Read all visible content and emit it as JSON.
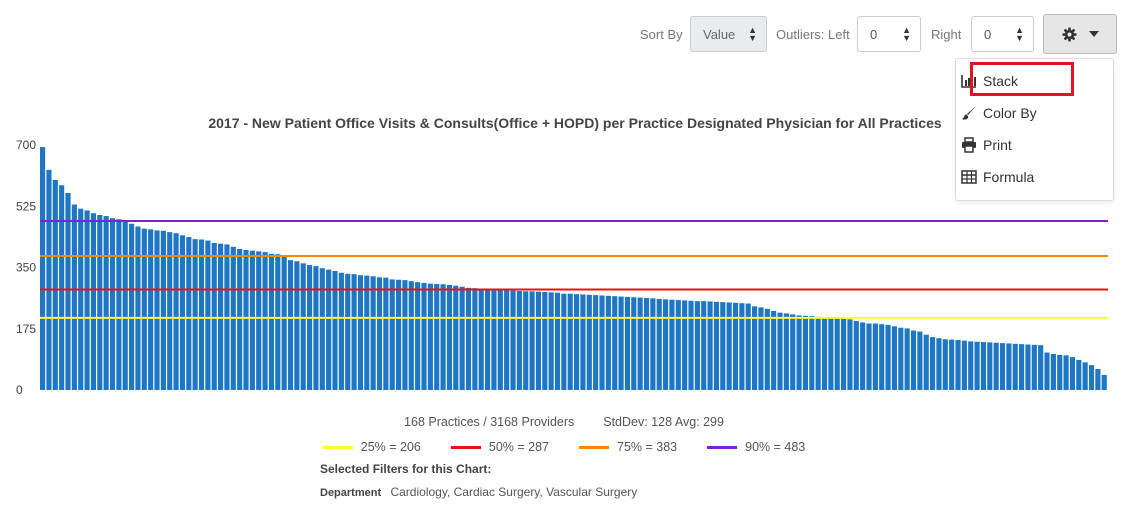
{
  "toolbar": {
    "sort_label": "Sort By",
    "sort_value": "Value",
    "outliers_left_label": "Outliers: Left",
    "outliers_left_value": "0",
    "outliers_right_label": "Right",
    "outliers_right_value": "0",
    "settings_icon": "gear-icon",
    "caret_icon": "caret-down-icon"
  },
  "menu": {
    "items": [
      {
        "label": "Stack",
        "icon": "bar-chart-icon"
      },
      {
        "label": "Color By",
        "icon": "paint-brush-icon"
      },
      {
        "label": "Print",
        "icon": "printer-icon"
      },
      {
        "label": "Formula",
        "icon": "table-icon"
      }
    ],
    "highlight_color": "#e0131f"
  },
  "chart_data": {
    "type": "bar",
    "title": "2017 - New Patient Office Visits & Consults(Office + HOPD) per Practice Designated Physician for All Practices",
    "bar_color": "#1f77c4",
    "ylim": [
      0,
      700
    ],
    "yticks": [
      "700",
      "525",
      "350",
      "175",
      "0"
    ],
    "ytick_values": [
      700,
      525,
      350,
      175,
      0
    ],
    "values": [
      694,
      629,
      600,
      585,
      563,
      530,
      518,
      513,
      505,
      500,
      497,
      491,
      488,
      484,
      475,
      467,
      461,
      459,
      456,
      455,
      451,
      448,
      442,
      437,
      431,
      430,
      427,
      420,
      418,
      416,
      409,
      403,
      400,
      398,
      396,
      394,
      389,
      388,
      385,
      371,
      368,
      362,
      357,
      354,
      348,
      344,
      340,
      335,
      332,
      331,
      328,
      327,
      325,
      322,
      321,
      316,
      315,
      314,
      311,
      308,
      306,
      304,
      303,
      302,
      300,
      298,
      295,
      292,
      291,
      290,
      289,
      288,
      286,
      285,
      284,
      283,
      282,
      282,
      281,
      280,
      279,
      278,
      275,
      275,
      274,
      273,
      272,
      271,
      270,
      269,
      268,
      267,
      266,
      265,
      264,
      263,
      262,
      260,
      259,
      258,
      257,
      256,
      255,
      254,
      254,
      253,
      252,
      251,
      250,
      249,
      248,
      247,
      239,
      236,
      232,
      226,
      221,
      219,
      216,
      213,
      212,
      211,
      209,
      206,
      205,
      204,
      203,
      202,
      197,
      193,
      190,
      190,
      188,
      186,
      182,
      178,
      176,
      170,
      167,
      158,
      151,
      148,
      145,
      144,
      143,
      141,
      139,
      138,
      137,
      136,
      135,
      134,
      133,
      132,
      131,
      130,
      129,
      128,
      107,
      103,
      100,
      99,
      94,
      86,
      79,
      71,
      60,
      43
    ],
    "reference_lines": [
      {
        "label": "25% = 206",
        "value": 206,
        "color": "#ffff33"
      },
      {
        "label": "50% = 287",
        "value": 287,
        "color": "#ee1111"
      },
      {
        "label": "75% = 383",
        "value": 383,
        "color": "#f58a07"
      },
      {
        "label": "90% = 483",
        "value": 483,
        "color": "#7f1fd9"
      }
    ]
  },
  "stats": {
    "summary": "168 Practices / 3168 Providers",
    "stddev_avg": "StdDev: 128 Avg: 299"
  },
  "filters": {
    "title": "Selected Filters for this Chart:",
    "department_label": "Department",
    "department_value": "Cardiology, Cardiac Surgery, Vascular Surgery"
  }
}
